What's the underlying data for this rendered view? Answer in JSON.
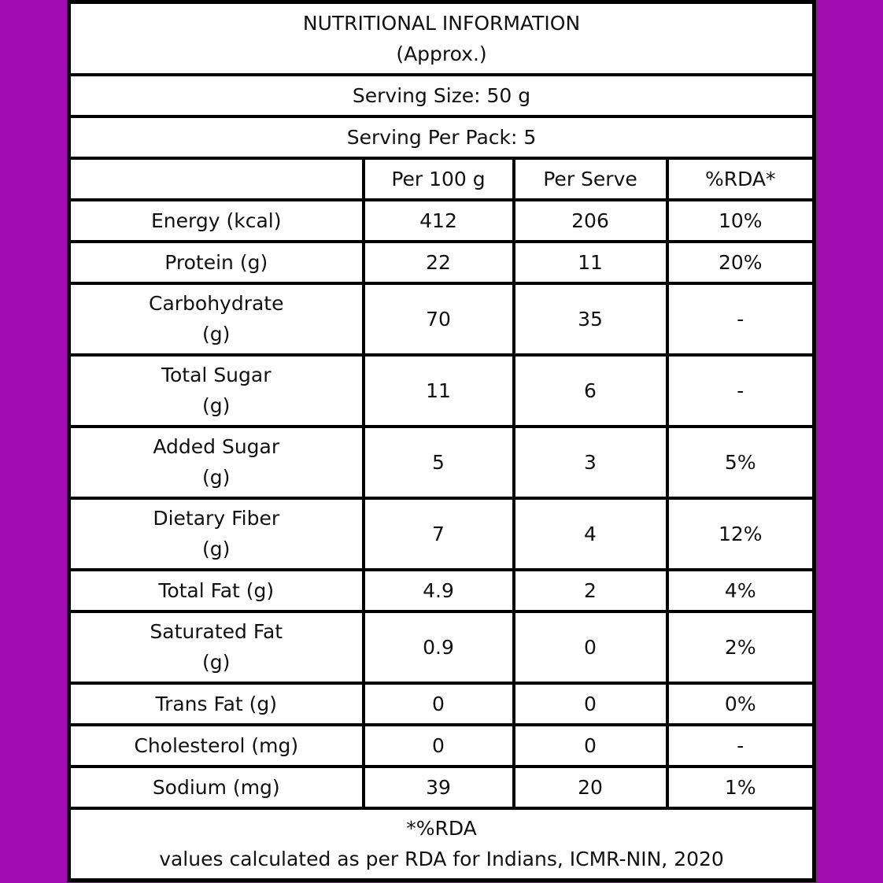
{
  "colors": {
    "background": "#a20db2",
    "table_bg": "#ffffff",
    "border": "#000000"
  },
  "title": "NUTRITIONAL INFORMATION",
  "subtitle": "(Approx.)",
  "serving_size": "Serving Size: 50 g",
  "servings_per_pack": "Serving Per Pack: 5",
  "columns": [
    "",
    "Per 100 g",
    "Per Serve",
    "%RDA*"
  ],
  "rows": [
    {
      "name": "Energy (kcal)",
      "unit": "",
      "per100": "412",
      "serve": "206",
      "rda": "10%"
    },
    {
      "name": "Protein (g)",
      "unit": "",
      "per100": "22",
      "serve": "11",
      "rda": "20%"
    },
    {
      "name": "Carbohydrate",
      "unit": "(g)",
      "per100": "70",
      "serve": "35",
      "rda": "-"
    },
    {
      "name": "Total Sugar",
      "unit": "(g)",
      "per100": "11",
      "serve": "6",
      "rda": "-"
    },
    {
      "name": "Added Sugar",
      "unit": "(g)",
      "per100": "5",
      "serve": "3",
      "rda": "5%"
    },
    {
      "name": "Dietary Fiber",
      "unit": "(g)",
      "per100": "7",
      "serve": "4",
      "rda": "12%"
    },
    {
      "name": "Total Fat (g)",
      "unit": "",
      "per100": "4.9",
      "serve": "2",
      "rda": "4%"
    },
    {
      "name": "Saturated Fat",
      "unit": "(g)",
      "per100": "0.9",
      "serve": "0",
      "rda": "2%"
    },
    {
      "name": "Trans Fat (g)",
      "unit": "",
      "per100": "0",
      "serve": "0",
      "rda": "0%"
    },
    {
      "name": "Cholesterol (mg)",
      "unit": "",
      "per100": "0",
      "serve": "0",
      "rda": "-"
    },
    {
      "name": "Sodium (mg)",
      "unit": "",
      "per100": "39",
      "serve": "20",
      "rda": "1%"
    }
  ],
  "footnote_title": "*%RDA",
  "footnote": "values calculated as per RDA for Indians, ICMR-NIN, 2020"
}
